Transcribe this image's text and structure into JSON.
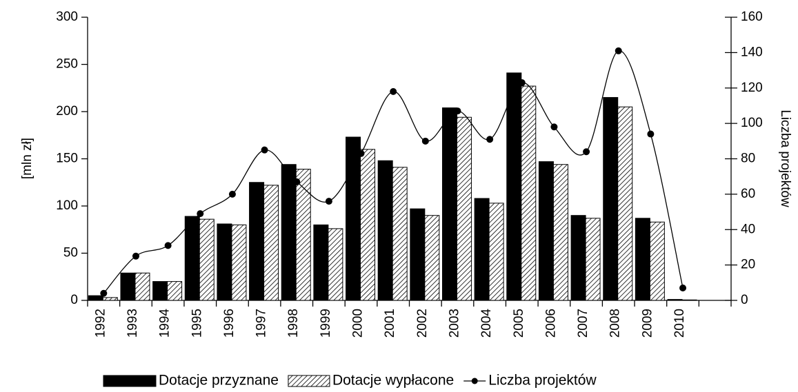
{
  "chart_data": {
    "type": "bar",
    "ylabel": "[mln zł]",
    "y2label": "Liczba projektów",
    "categories": [
      "1992",
      "1993",
      "1994",
      "1995",
      "1996",
      "1997",
      "1998",
      "1999",
      "2000",
      "2001",
      "2002",
      "2003",
      "2004",
      "2005",
      "2006",
      "2007",
      "2008",
      "2009",
      "2010",
      null
    ],
    "series": [
      {
        "name": "Dotacje przyznane",
        "color": "#000000",
        "pattern": "solid",
        "values": [
          5,
          29,
          20,
          89,
          81,
          125,
          144,
          80,
          173,
          148,
          97,
          204,
          108,
          241,
          147,
          90,
          215,
          87,
          1,
          null
        ]
      },
      {
        "name": "Dotacje wypłacone",
        "color": "#000000",
        "pattern": "hatched",
        "values": [
          3,
          29,
          20,
          86,
          80,
          122,
          139,
          76,
          160,
          141,
          90,
          194,
          103,
          227,
          144,
          87,
          205,
          83,
          0.5,
          null
        ]
      },
      {
        "name": "Liczba projektów",
        "type": "line",
        "axis": "y2",
        "color": "#000000",
        "values": [
          4,
          25,
          31,
          49,
          60,
          85,
          67,
          56,
          83,
          118,
          90,
          107,
          91,
          123,
          98,
          84,
          141,
          94,
          7,
          null
        ]
      }
    ],
    "ylim": [
      0,
      300
    ],
    "yticks": [
      0,
      50,
      100,
      150,
      200,
      250,
      300
    ],
    "y2lim": [
      0,
      160
    ],
    "y2ticks": [
      0,
      20,
      40,
      60,
      80,
      100,
      120,
      140,
      160
    ],
    "legend": "bottom"
  }
}
